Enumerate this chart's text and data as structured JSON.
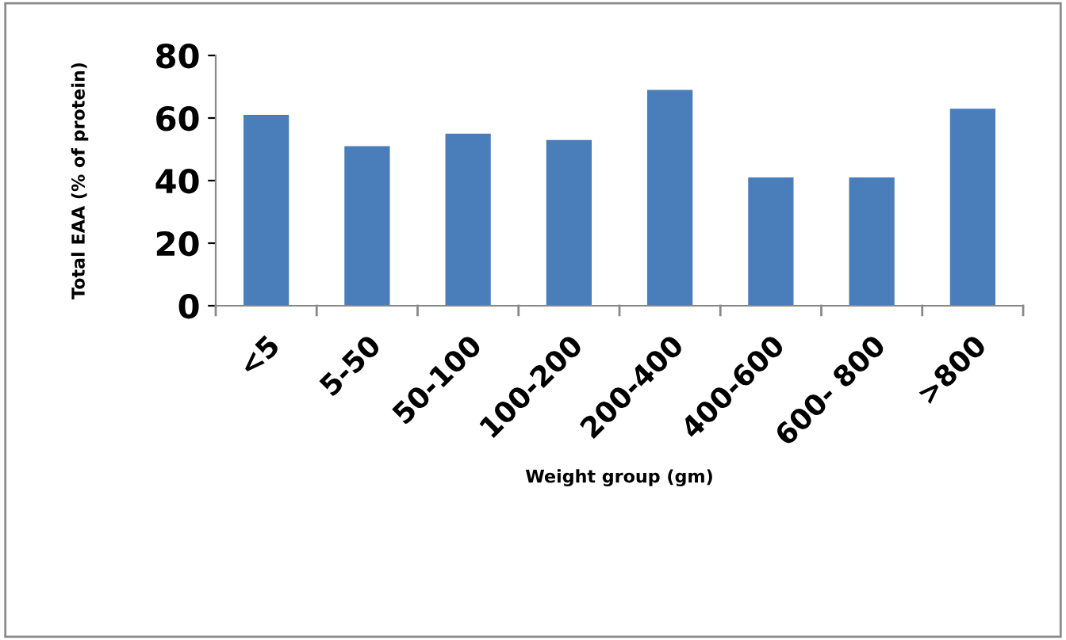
{
  "chart_data": {
    "type": "bar",
    "xlabel": "Weight group (gm)",
    "ylabel": "Total EAA (% of protein)",
    "categories": [
      "<5",
      "5-50",
      "50-100",
      "100-200",
      "200-400",
      "400-600",
      "600- 800",
      ">800"
    ],
    "values": [
      61,
      51,
      55,
      53,
      69,
      41,
      41,
      63
    ],
    "color": "#4a7ebb",
    "ylim": [
      0,
      80
    ],
    "yticks": [
      0,
      20,
      40,
      60,
      80
    ],
    "grid": false
  }
}
